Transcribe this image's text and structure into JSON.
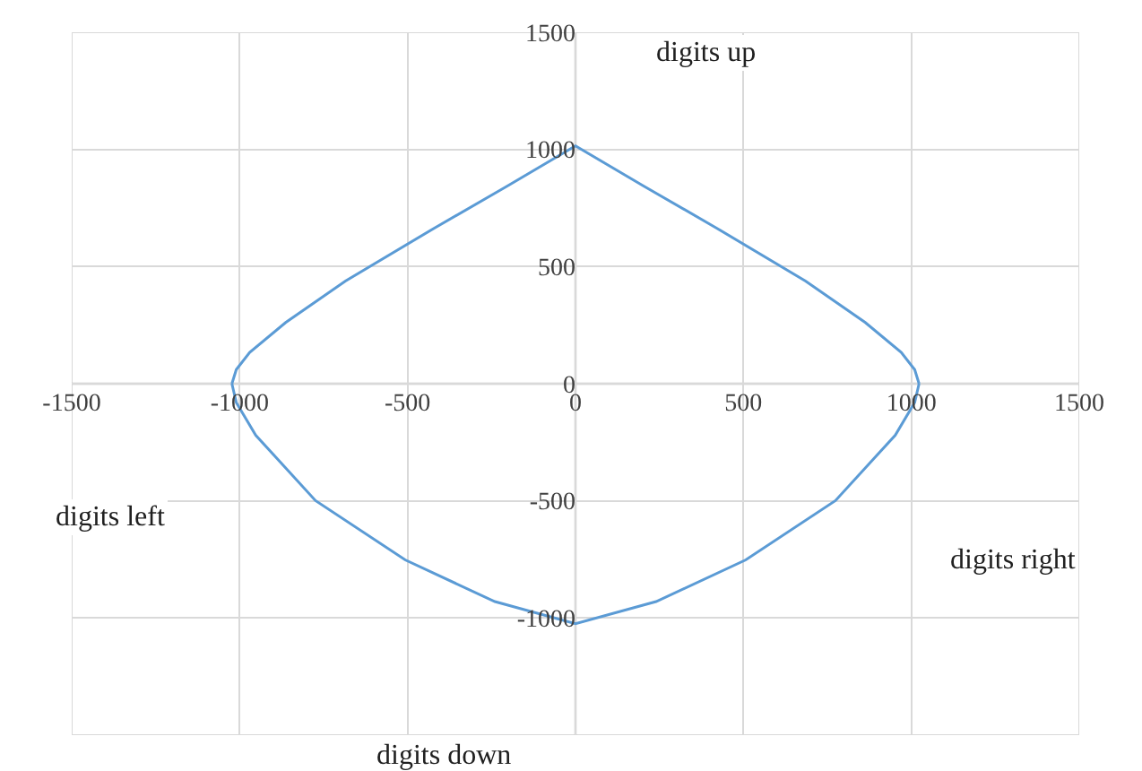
{
  "chart_data": {
    "type": "line",
    "series": [
      {
        "color": "#5b9bd5",
        "x": [
          -1023,
          -1010,
          -970,
          -863,
          -685,
          -418,
          -204,
          0,
          204,
          418,
          685,
          863,
          970,
          1010,
          1023
        ],
        "values": [
          0,
          60,
          134,
          261,
          438,
          666,
          843,
          1015,
          843,
          666,
          438,
          261,
          134,
          60,
          0
        ]
      },
      {
        "color": "#5b9bd5",
        "x": [
          -1023,
          -1010,
          -952,
          -774,
          -507,
          -240,
          0,
          240,
          507,
          774,
          952,
          1010,
          1023
        ],
        "values": [
          0,
          -80,
          -220,
          -499,
          -752,
          -930,
          -1024,
          -930,
          -752,
          -499,
          -220,
          -80,
          0
        ]
      }
    ],
    "xlim": [
      -1500,
      1500
    ],
    "ylim": [
      -1500,
      1500
    ],
    "xticks": [
      -1500,
      -1000,
      -500,
      0,
      500,
      1000,
      1500
    ],
    "yticks": [
      {
        "value": -1500,
        "label": null
      },
      -1000,
      -500,
      0,
      500,
      1000,
      1500
    ],
    "grid": true,
    "marker": "none",
    "line_style": "solid",
    "annotations": [
      "digits up",
      "digits left",
      "digits right",
      "digits down"
    ]
  }
}
